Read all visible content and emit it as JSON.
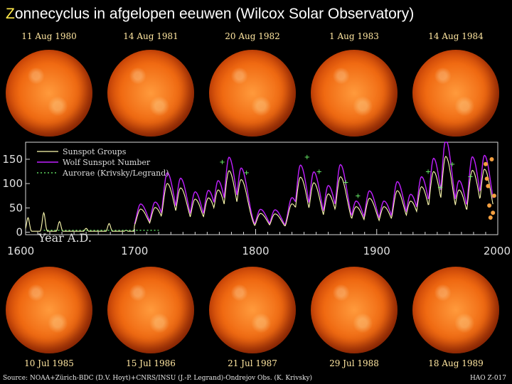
{
  "title": {
    "first": "Z",
    "rest": "onnecyclus in afgelopen eeuwen (Wilcox Solar Observatory)"
  },
  "top_dates": [
    "11 Aug 1980",
    "14 Aug 1981",
    "20 Aug 1982",
    "1 Aug 1983",
    "14 Aug 1984"
  ],
  "bottom_dates": [
    "10 Jul 1985",
    "15 Jul 1986",
    "21 Jul 1987",
    "29 Jul 1988",
    "18 Aug 1989"
  ],
  "source": "Source: NOAA+Zürich-BDC (D.V. Hoyt)+CNRS/INSU (J.-P. Legrand)-Ondrejov Obs. (K. Krivsky)",
  "hao_label": "HAO Z-017",
  "colors": {
    "groups": "#fffcb0",
    "wolf": "#c020ff",
    "aurorae": "#70ff70",
    "markers": "#f5a040",
    "title_accent": "#ffe84a"
  },
  "chart_data": {
    "type": "line",
    "legend": [
      "Sunspot Groups",
      "Wolf Sunspot Number",
      "Aurorae (Krivsky/Legrand)"
    ],
    "legend_position": "top-left",
    "x_tick_labels": [
      "1600",
      "1700",
      "1800",
      "1900",
      "2000"
    ],
    "y_tick_labels": [
      "0",
      "50",
      "100",
      "150"
    ],
    "x_label": "Year A.D.",
    "xlim": [
      1610,
      2000
    ],
    "ylim": [
      -5,
      185
    ],
    "grid": false,
    "cycle_peaks": [
      {
        "year": 1705,
        "wolf": 58
      },
      {
        "year": 1717,
        "wolf": 62
      },
      {
        "year": 1727,
        "wolf": 122
      },
      {
        "year": 1738,
        "wolf": 111
      },
      {
        "year": 1750,
        "wolf": 83
      },
      {
        "year": 1761,
        "wolf": 86
      },
      {
        "year": 1769,
        "wolf": 106
      },
      {
        "year": 1778,
        "wolf": 154
      },
      {
        "year": 1788,
        "wolf": 132
      },
      {
        "year": 1804,
        "wolf": 47
      },
      {
        "year": 1816,
        "wolf": 46
      },
      {
        "year": 1830,
        "wolf": 71
      },
      {
        "year": 1837,
        "wolf": 138
      },
      {
        "year": 1848,
        "wolf": 124
      },
      {
        "year": 1860,
        "wolf": 96
      },
      {
        "year": 1870,
        "wolf": 139
      },
      {
        "year": 1883,
        "wolf": 64
      },
      {
        "year": 1894,
        "wolf": 85
      },
      {
        "year": 1906,
        "wolf": 64
      },
      {
        "year": 1917,
        "wolf": 104
      },
      {
        "year": 1928,
        "wolf": 78
      },
      {
        "year": 1937,
        "wolf": 114
      },
      {
        "year": 1947,
        "wolf": 152
      },
      {
        "year": 1957,
        "wolf": 190
      },
      {
        "year": 1968,
        "wolf": 106
      },
      {
        "year": 1979,
        "wolf": 155
      },
      {
        "year": 1989,
        "wolf": 158
      }
    ],
    "early_groups": [
      {
        "year": 1612,
        "value": 30
      },
      {
        "year": 1625,
        "value": 40
      },
      {
        "year": 1638,
        "value": 22
      },
      {
        "year": 1660,
        "value": 8
      },
      {
        "year": 1679,
        "value": 18
      },
      {
        "year": 1693,
        "value": 4
      }
    ],
    "recent_markers": [
      {
        "year": 1990,
        "value": 140
      },
      {
        "year": 1991,
        "value": 110
      },
      {
        "year": 1992,
        "value": 95
      },
      {
        "year": 1993,
        "value": 55
      },
      {
        "year": 1994,
        "value": 30
      },
      {
        "year": 1995,
        "value": 150
      },
      {
        "year": 1996,
        "value": 40
      },
      {
        "year": 1997,
        "value": 75
      }
    ]
  }
}
